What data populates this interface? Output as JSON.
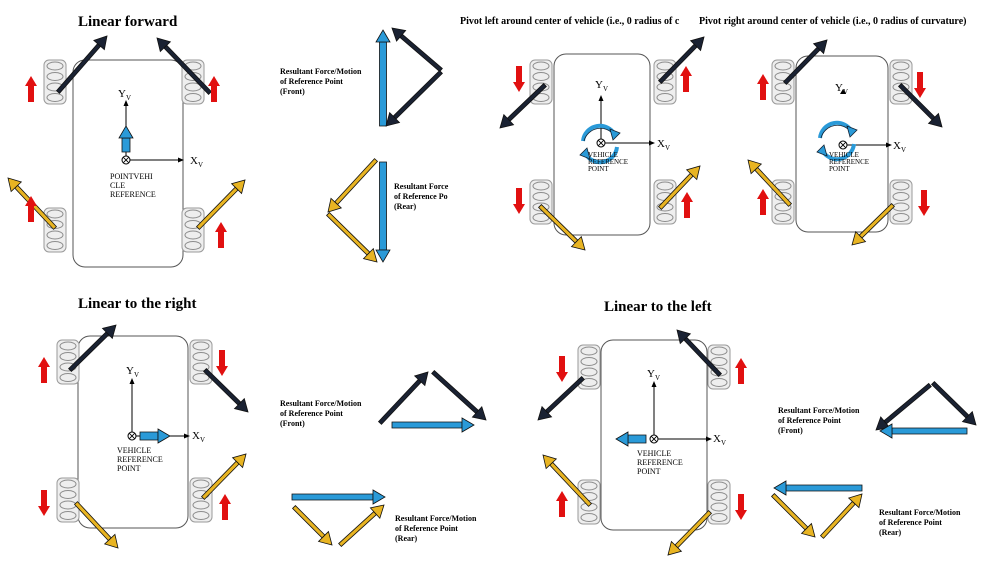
{
  "panels": {
    "forward": {
      "title": "Linear forward",
      "resultant_front": [
        "Resultant Force/Motion",
        "of Reference Point",
        "(Front)"
      ],
      "resultant_rear": [
        "Resultant Force",
        "of Reference Po",
        "(Rear)"
      ],
      "ref_label": [
        "POINTVEHI",
        "CLE",
        "REFERENCE"
      ]
    },
    "pivot_left": {
      "title": "Pivot left around center of vehicle (i.e., 0 radius of c",
      "ref_label": [
        "VEHICLE",
        "REFERENCE",
        "POINT"
      ]
    },
    "pivot_right": {
      "title": "Pivot right around center of vehicle (i.e., 0 radius of curvature)",
      "ref_label": [
        "VEHICLE",
        "REFERENCE",
        "POINT"
      ]
    },
    "right": {
      "title": "Linear to the right",
      "resultant_front": [
        "Resultant Force/Motion",
        "of Reference Point",
        "(Front)"
      ],
      "resultant_rear": [
        "Resultant Force/Motion",
        "of Reference Point",
        "(Rear)"
      ],
      "ref_label": [
        "VEHICLE",
        "REFERENCE",
        "POINT"
      ]
    },
    "left": {
      "title": "Linear to the left",
      "resultant_front": [
        "Resultant Force/Motion",
        "of Reference Point",
        "(Front)"
      ],
      "resultant_rear": [
        "Resultant Force/Motion",
        "of Reference Point",
        "(Rear)"
      ],
      "ref_label": [
        "VEHICLE",
        "REFERENCE",
        "POINT"
      ]
    }
  },
  "axes": {
    "y": "Y",
    "x": "X",
    "sub": "V"
  },
  "colors": {
    "wheel_force_front": "#1a2233",
    "wheel_force_rear": "#e8b422",
    "wheel_direction": "#e11010",
    "resultant": "#2a9ad8",
    "body_outline": "#555555"
  },
  "icons": {
    "reference_point": "circled-x-icon",
    "rotation": "rotation-arrow-icon"
  }
}
